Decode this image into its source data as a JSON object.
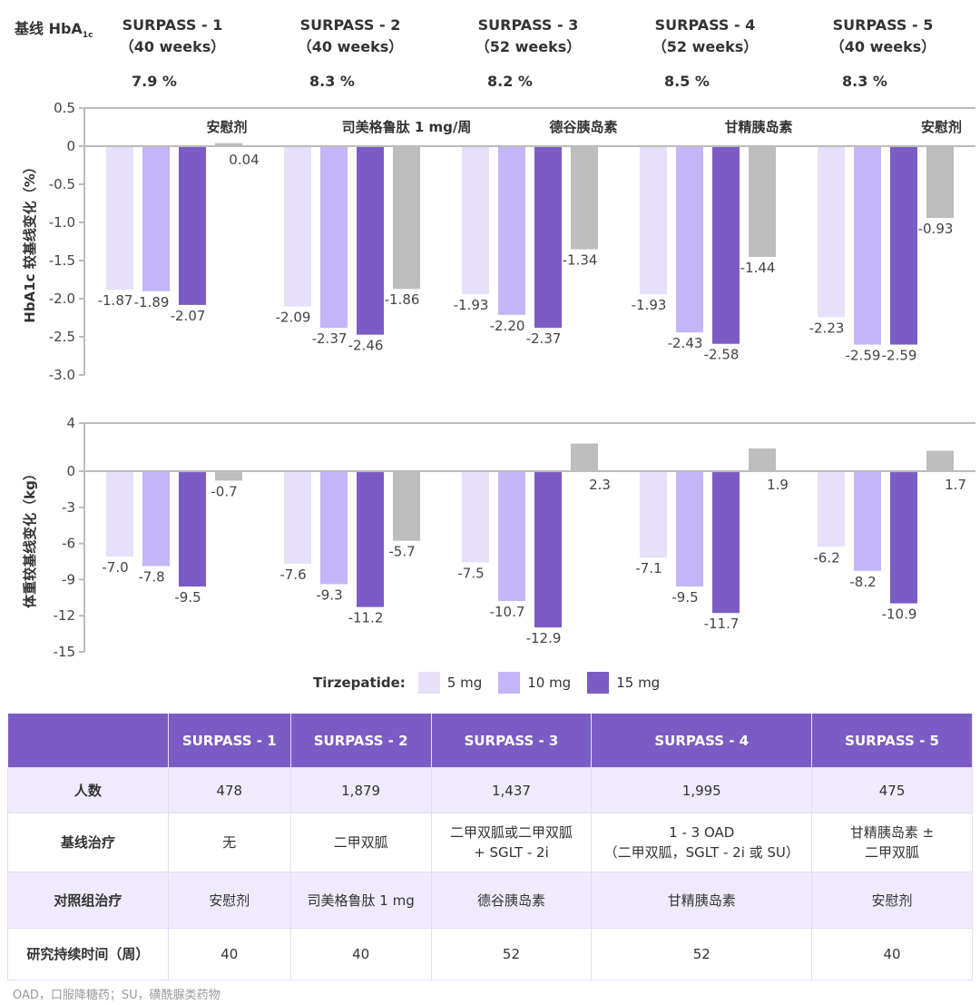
{
  "header": {
    "baseline_label": "基线 HbA",
    "baseline_sub": "1c",
    "trials": [
      {
        "name": "SURPASS - 1",
        "duration": "（40 weeks）",
        "baseline": "7.9 %"
      },
      {
        "name": "SURPASS - 2",
        "duration": "（40 weeks）",
        "baseline": "8.3 %"
      },
      {
        "name": "SURPASS - 3",
        "duration": "（52 weeks）",
        "baseline": "8.2 %"
      },
      {
        "name": "SURPASS - 4",
        "duration": "（52 weeks）",
        "baseline": "8.5 %"
      },
      {
        "name": "SURPASS - 5",
        "duration": "（40 weeks）",
        "baseline": "8.3 %"
      }
    ]
  },
  "chart_data": [
    {
      "type": "bar",
      "ylabel": "HbA1c 较基线变化（%）",
      "ylim": [
        -3.0,
        0.5
      ],
      "yticks": [
        "0.5",
        "0",
        "-0.5",
        "-1.0",
        "-1.5",
        "-2.0",
        "-2.5",
        "-3.0"
      ],
      "categories": [
        "SURPASS - 1",
        "SURPASS - 2",
        "SURPASS - 3",
        "SURPASS - 4",
        "SURPASS - 5"
      ],
      "comparators": [
        "安慰剂",
        "司美格鲁肽 1 mg/周",
        "德谷胰岛素",
        "甘精胰岛素",
        "安慰剂"
      ],
      "series": [
        {
          "name": "5 mg",
          "values": [
            -1.87,
            -2.09,
            -1.93,
            -1.93,
            -2.23
          ]
        },
        {
          "name": "10 mg",
          "values": [
            -1.89,
            -2.37,
            -2.2,
            -2.43,
            -2.59
          ]
        },
        {
          "name": "15 mg",
          "values": [
            -2.07,
            -2.46,
            -2.37,
            -2.58,
            -2.59
          ]
        },
        {
          "values": [
            0.04,
            -1.86,
            -1.34,
            -1.44,
            -0.93
          ]
        }
      ],
      "labels": [
        [
          "-1.87",
          "-2.09",
          "-1.93",
          "-1.93",
          "-2.23"
        ],
        [
          "-1.89",
          "-2.37",
          "-2.20",
          "-2.43",
          "-2.59"
        ],
        [
          "-2.07",
          "-2.46",
          "-2.37",
          "-2.58",
          "-2.59"
        ],
        [
          "0.04",
          "-1.86",
          "-1.34",
          "-1.44",
          "-0.93"
        ]
      ]
    },
    {
      "type": "bar",
      "ylabel": "体重较基线变化（kg）",
      "ylim": [
        -15,
        4
      ],
      "yticks": [
        "4",
        "0",
        "-3",
        "-6",
        "-9",
        "-12",
        "-15"
      ],
      "categories": [
        "SURPASS - 1",
        "SURPASS - 2",
        "SURPASS - 3",
        "SURPASS - 4",
        "SURPASS - 5"
      ],
      "series": [
        {
          "name": "5 mg",
          "values": [
            -7.0,
            -7.6,
            -7.5,
            -7.1,
            -6.2
          ]
        },
        {
          "name": "10 mg",
          "values": [
            -7.8,
            -9.3,
            -10.7,
            -9.5,
            -8.2
          ]
        },
        {
          "name": "15 mg",
          "values": [
            -9.5,
            -11.2,
            -12.9,
            -11.7,
            -10.9
          ]
        },
        {
          "values": [
            -0.7,
            -5.7,
            2.3,
            1.9,
            1.7
          ]
        }
      ],
      "labels": [
        [
          "-7.0",
          "-7.6",
          "-7.5",
          "-7.1",
          "-6.2"
        ],
        [
          "-7.8",
          "-9.3",
          "-10.7",
          "-9.5",
          "-8.2"
        ],
        [
          "-9.5",
          "-11.2",
          "-12.9",
          "-11.7",
          "-10.9"
        ],
        [
          "-0.7",
          "-5.7",
          "2.3",
          "1.9",
          "1.7"
        ]
      ]
    }
  ],
  "colors": {
    "5mg": "#e6e0fa",
    "10mg": "#c3b5f7",
    "15mg": "#7b5cc4",
    "comparator": "#bdbdbd",
    "header": "#7b5cc4",
    "alt_row": "#efeafd"
  },
  "legend": {
    "title": "Tirzepatide:",
    "items": [
      "5 mg",
      "10 mg",
      "15 mg"
    ]
  },
  "table": {
    "columns": [
      "",
      "SURPASS - 1",
      "SURPASS - 2",
      "SURPASS - 3",
      "SURPASS - 4",
      "SURPASS - 5"
    ],
    "rows": [
      [
        "人数",
        "478",
        "1,879",
        "1,437",
        "1,995",
        "475"
      ],
      [
        "基线治疗",
        "无",
        "二甲双胍",
        "二甲双胍或二甲双胍\n+ SGLT - 2i",
        "1 - 3 OAD\n（二甲双胍，SGLT - 2i 或 SU）",
        "甘精胰岛素 ±\n二甲双胍"
      ],
      [
        "对照组治疗",
        "安慰剂",
        "司美格鲁肽 1 mg",
        "德谷胰岛素",
        "甘精胰岛素",
        "安慰剂"
      ],
      [
        "研究持续时间（周）",
        "40",
        "40",
        "52",
        "52",
        "40"
      ]
    ]
  },
  "footnote": "OAD，口服降糖药；SU，磺酰脲类药物"
}
